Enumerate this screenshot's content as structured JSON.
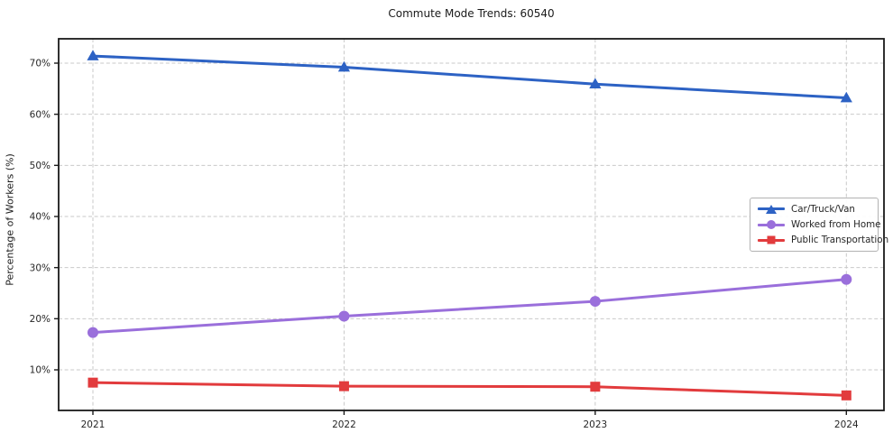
{
  "title": "Commute Mode Trends: 60540",
  "chart_data": {
    "type": "line",
    "title": "Commute Mode Trends: 60540",
    "xlabel": "",
    "ylabel": "Percentage of Workers (%)",
    "x": [
      "2021",
      "2022",
      "2023",
      "2024"
    ],
    "series": [
      {
        "name": "Car/Truck/Van",
        "values": [
          71.4,
          69.2,
          65.9,
          63.2
        ],
        "color": "#2d62c4",
        "marker": "triangle"
      },
      {
        "name": "Worked from Home",
        "values": [
          17.3,
          20.5,
          23.4,
          27.7
        ],
        "color": "#9a6fdb",
        "marker": "circle"
      },
      {
        "name": "Public Transportation",
        "values": [
          7.5,
          6.8,
          6.7,
          5.0
        ],
        "color": "#e23b3d",
        "marker": "square"
      }
    ],
    "y_ticks": [
      10,
      20,
      30,
      40,
      50,
      60,
      70
    ],
    "y_tick_labels": [
      "10%",
      "20%",
      "30%",
      "40%",
      "50%",
      "60%",
      "70%"
    ],
    "ylim": [
      2,
      74.8
    ],
    "grid": true,
    "grid_style": "dashed",
    "legend_position": "center-right",
    "frame_color": "#1a1a1a",
    "grid_color": "#c9c9c9"
  }
}
